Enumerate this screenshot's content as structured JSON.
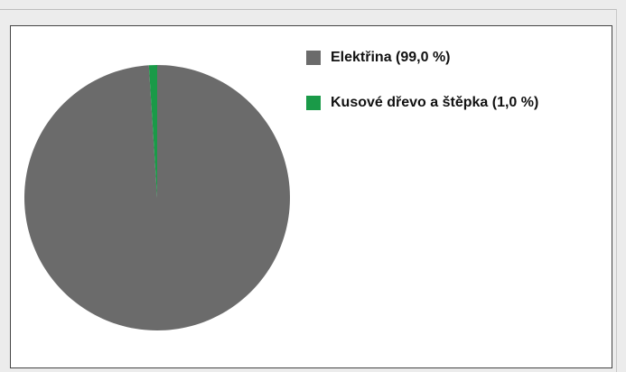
{
  "chart_data": {
    "type": "pie",
    "title": "",
    "series": [
      {
        "values": [
          99.0,
          1.0
        ]
      }
    ],
    "categories": [
      "Elektřina",
      "Kusové dřevo a štěpka"
    ],
    "legend": {
      "placement": "top-right",
      "entries": [
        {
          "label": "Elektřina (99,0 %)",
          "color": "#6b6b6b"
        },
        {
          "label": "Kusové dřevo a štěpka (1,0 %)",
          "color": "#1a9a48"
        }
      ]
    },
    "colors": [
      "#6b6b6b",
      "#1a9a48"
    ]
  }
}
